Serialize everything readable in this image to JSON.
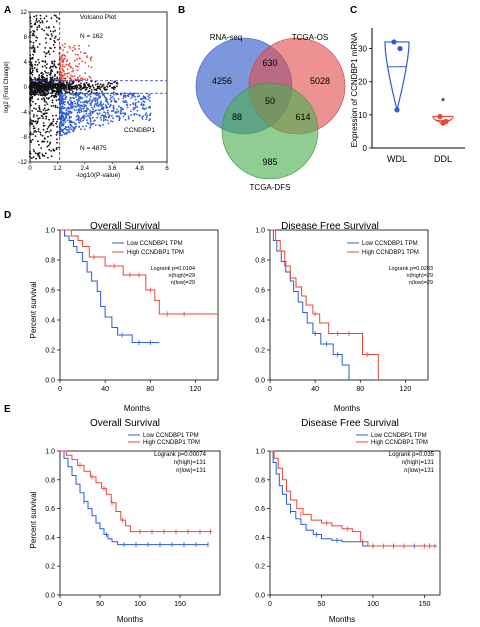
{
  "panel_labels": [
    "A",
    "B",
    "C",
    "D",
    "E"
  ],
  "colors": {
    "red": "#e8473a",
    "blue": "#2f5bd6",
    "black": "#111111",
    "dashed": "#2233cc",
    "venn_a": "#4a6fcf",
    "venn_b": "#e0504e",
    "venn_c": "#4caf50"
  },
  "chart_data": [
    {
      "panel": "A",
      "type": "scatter",
      "title": "Volcano Plot",
      "xlabel": "-log10(P-value)",
      "ylabel": "log2 (Fold Change)",
      "xlim": [
        0,
        6
      ],
      "ylim": [
        -12,
        12
      ],
      "xticks": [
        "0",
        "1.2",
        "2.4",
        "3.6",
        "4.8",
        "6"
      ],
      "yticks": [
        "12",
        "8",
        "4",
        "0",
        "-4",
        "-8",
        "-12"
      ],
      "thresholds": {
        "x": 1.3,
        "y_up": 1,
        "y_down": -1
      },
      "annotations": {
        "up_count": "N = 162",
        "down_count": "N = 4875",
        "gene": "CCNDBP1"
      },
      "series": [
        {
          "color": "red",
          "count": 162
        },
        {
          "color": "blue",
          "count": 4875
        },
        {
          "color": "black"
        }
      ]
    },
    {
      "panel": "B",
      "type": "venn",
      "sets": [
        "RNA-seq",
        "TCGA-OS",
        "TCGA-DFS"
      ],
      "regions": {
        "A": "4256",
        "B": "5028",
        "C": "985",
        "AB": "630",
        "AC": "88",
        "BC": "614",
        "ABC": "50"
      }
    },
    {
      "panel": "C",
      "type": "violin",
      "ylabel": "Expression of CCNDBP1 mRNA",
      "categories": [
        "WDL",
        "DDL"
      ],
      "ylim": [
        0,
        35
      ],
      "yticks": [
        "0",
        "10",
        "20",
        "30"
      ],
      "groups": [
        {
          "name": "WDL",
          "points": [
            32,
            30,
            11.5
          ],
          "color": "blue"
        },
        {
          "name": "DDL",
          "points": [
            9.5,
            8,
            7.5
          ],
          "color": "red"
        }
      ],
      "significance": "*"
    },
    {
      "panel": "D",
      "type": "line",
      "title": "Overall Survival",
      "xlabel": "Months",
      "ylabel": "Percent survival",
      "xlim": [
        0,
        140
      ],
      "ylim": [
        0,
        1
      ],
      "xticks": [
        "0",
        "40",
        "80",
        "120"
      ],
      "yticks": [
        "0.0",
        "0.2",
        "0.4",
        "0.6",
        "0.8",
        "1.0"
      ],
      "legend": [
        "Low CCNDBP1 TPM",
        "High CCNDBP1 TPM"
      ],
      "stats": [
        "Logrank p=0.0184",
        "n(high)=29",
        "n(low)=29"
      ],
      "series": [
        {
          "name": "Low CCNDBP1 TPM",
          "color": "blue",
          "steps": [
            [
              0,
              1.0
            ],
            [
              4,
              0.96
            ],
            [
              8,
              0.93
            ],
            [
              12,
              0.89
            ],
            [
              15,
              0.85
            ],
            [
              20,
              0.79
            ],
            [
              24,
              0.72
            ],
            [
              28,
              0.66
            ],
            [
              33,
              0.59
            ],
            [
              36,
              0.49
            ],
            [
              40,
              0.42
            ],
            [
              46,
              0.35
            ],
            [
              51,
              0.3
            ],
            [
              64,
              0.25
            ],
            [
              88,
              0.25
            ]
          ],
          "censor": [
            [
              55,
              0.3
            ],
            [
              70,
              0.25
            ],
            [
              80,
              0.25
            ]
          ]
        },
        {
          "name": "High CCNDBP1 TPM",
          "color": "red",
          "steps": [
            [
              0,
              1.0
            ],
            [
              10,
              0.96
            ],
            [
              16,
              0.93
            ],
            [
              20,
              0.89
            ],
            [
              26,
              0.82
            ],
            [
              40,
              0.76
            ],
            [
              56,
              0.7
            ],
            [
              76,
              0.6
            ],
            [
              84,
              0.53
            ],
            [
              88,
              0.44
            ],
            [
              140,
              0.44
            ]
          ],
          "censor": [
            [
              30,
              0.82
            ],
            [
              48,
              0.76
            ],
            [
              62,
              0.7
            ],
            [
              70,
              0.7
            ],
            [
              80,
              0.6
            ],
            [
              95,
              0.44
            ],
            [
              110,
              0.44
            ]
          ]
        }
      ]
    },
    {
      "panel": "D",
      "type": "line",
      "title": "Disease Free Survival",
      "xlabel": "Months",
      "ylabel": "",
      "xlim": [
        0,
        140
      ],
      "ylim": [
        0,
        1
      ],
      "xticks": [
        "0",
        "40",
        "80",
        "120"
      ],
      "yticks": [
        "0.0",
        "0.2",
        "0.4",
        "0.6",
        "0.8",
        "1.0"
      ],
      "legend": [
        "Low CCNDBP1 TPM",
        "High CCNDBP1 TPM"
      ],
      "stats": [
        "Logrank p=0.0283",
        "n(high)=29",
        "n(low)=29"
      ],
      "series": [
        {
          "name": "Low CCNDBP1 TPM",
          "color": "blue",
          "steps": [
            [
              0,
              1.0
            ],
            [
              3,
              0.93
            ],
            [
              6,
              0.86
            ],
            [
              10,
              0.79
            ],
            [
              14,
              0.72
            ],
            [
              18,
              0.66
            ],
            [
              21,
              0.59
            ],
            [
              25,
              0.52
            ],
            [
              29,
              0.45
            ],
            [
              33,
              0.38
            ],
            [
              38,
              0.31
            ],
            [
              45,
              0.24
            ],
            [
              56,
              0.17
            ],
            [
              64,
              0.1
            ],
            [
              70,
              0.0
            ]
          ],
          "censor": [
            [
              40,
              0.31
            ],
            [
              50,
              0.24
            ],
            [
              60,
              0.17
            ]
          ]
        },
        {
          "name": "High CCNDBP1 TPM",
          "color": "red",
          "steps": [
            [
              0,
              1.0
            ],
            [
              5,
              0.93
            ],
            [
              9,
              0.86
            ],
            [
              13,
              0.76
            ],
            [
              18,
              0.68
            ],
            [
              23,
              0.62
            ],
            [
              28,
              0.56
            ],
            [
              32,
              0.5
            ],
            [
              38,
              0.44
            ],
            [
              44,
              0.38
            ],
            [
              52,
              0.31
            ],
            [
              82,
              0.17
            ],
            [
              96,
              0.0
            ]
          ],
          "censor": [
            [
              40,
              0.44
            ],
            [
              60,
              0.31
            ],
            [
              70,
              0.31
            ],
            [
              86,
              0.17
            ]
          ]
        }
      ]
    },
    {
      "panel": "E",
      "type": "line",
      "title": "Overall Survival",
      "xlabel": "Months",
      "ylabel": "Percent survival",
      "xlim": [
        0,
        200
      ],
      "ylim": [
        0,
        1
      ],
      "xticks": [
        "0",
        "50",
        "100",
        "150"
      ],
      "yticks": [
        "0.0",
        "0.2",
        "0.4",
        "0.6",
        "0.8",
        "1.0"
      ],
      "legend": [
        "Low CCNDBP1 TPM",
        "High CCNDBP1 TPM"
      ],
      "stats": [
        "Logrank p=0.00074",
        "n(high)=131",
        "n(low)=131"
      ],
      "series": [
        {
          "name": "Low CCNDBP1 TPM",
          "color": "blue",
          "steps": [
            [
              0,
              1.0
            ],
            [
              5,
              0.95
            ],
            [
              10,
              0.89
            ],
            [
              15,
              0.83
            ],
            [
              20,
              0.77
            ],
            [
              25,
              0.71
            ],
            [
              30,
              0.65
            ],
            [
              35,
              0.6
            ],
            [
              40,
              0.55
            ],
            [
              45,
              0.5
            ],
            [
              50,
              0.46
            ],
            [
              55,
              0.42
            ],
            [
              60,
              0.39
            ],
            [
              65,
              0.37
            ],
            [
              72,
              0.35
            ],
            [
              185,
              0.35
            ]
          ],
          "censor": [
            [
              30,
              0.65
            ],
            [
              58,
              0.42
            ],
            [
              80,
              0.35
            ],
            [
              95,
              0.35
            ],
            [
              110,
              0.35
            ],
            [
              125,
              0.35
            ],
            [
              140,
              0.35
            ],
            [
              155,
              0.35
            ],
            [
              170,
              0.35
            ],
            [
              185,
              0.35
            ]
          ]
        },
        {
          "name": "High CCNDBP1 TPM",
          "color": "red",
          "steps": [
            [
              0,
              1.0
            ],
            [
              8,
              0.97
            ],
            [
              15,
              0.94
            ],
            [
              22,
              0.9
            ],
            [
              30,
              0.86
            ],
            [
              38,
              0.82
            ],
            [
              45,
              0.78
            ],
            [
              52,
              0.74
            ],
            [
              58,
              0.7
            ],
            [
              64,
              0.64
            ],
            [
              70,
              0.58
            ],
            [
              76,
              0.52
            ],
            [
              82,
              0.48
            ],
            [
              88,
              0.44
            ],
            [
              190,
              0.44
            ]
          ],
          "censor": [
            [
              25,
              0.9
            ],
            [
              40,
              0.82
            ],
            [
              55,
              0.74
            ],
            [
              65,
              0.64
            ],
            [
              78,
              0.52
            ],
            [
              100,
              0.44
            ],
            [
              115,
              0.44
            ],
            [
              130,
              0.44
            ],
            [
              145,
              0.44
            ],
            [
              160,
              0.44
            ],
            [
              175,
              0.44
            ],
            [
              188,
              0.44
            ]
          ]
        }
      ]
    },
    {
      "panel": "E",
      "type": "line",
      "title": "Disease Free Survival",
      "xlabel": "Months",
      "ylabel": "",
      "xlim": [
        0,
        165
      ],
      "ylim": [
        0,
        1
      ],
      "xticks": [
        "0",
        "50",
        "100",
        "150"
      ],
      "yticks": [
        "0.0",
        "0.2",
        "0.4",
        "0.6",
        "0.8",
        "1.0"
      ],
      "legend": [
        "Low CCNDBP1 TPM",
        "High CCNDBP1 TPM"
      ],
      "stats": [
        "Logrank p=0.035",
        "n(high)=131",
        "n(low)=131"
      ],
      "series": [
        {
          "name": "Low CCNDBP1 TPM",
          "color": "blue",
          "steps": [
            [
              0,
              1.0
            ],
            [
              3,
              0.92
            ],
            [
              6,
              0.84
            ],
            [
              9,
              0.76
            ],
            [
              12,
              0.7
            ],
            [
              16,
              0.63
            ],
            [
              20,
              0.58
            ],
            [
              25,
              0.53
            ],
            [
              30,
              0.49
            ],
            [
              35,
              0.45
            ],
            [
              42,
              0.42
            ],
            [
              50,
              0.39
            ],
            [
              60,
              0.38
            ],
            [
              70,
              0.37
            ],
            [
              90,
              0.34
            ],
            [
              162,
              0.34
            ]
          ],
          "censor": [
            [
              20,
              0.58
            ],
            [
              45,
              0.42
            ],
            [
              65,
              0.38
            ],
            [
              100,
              0.34
            ],
            [
              120,
              0.34
            ],
            [
              140,
              0.34
            ],
            [
              155,
              0.34
            ]
          ]
        },
        {
          "name": "High CCNDBP1 TPM",
          "color": "red",
          "steps": [
            [
              0,
              1.0
            ],
            [
              4,
              0.95
            ],
            [
              8,
              0.88
            ],
            [
              12,
              0.8
            ],
            [
              16,
              0.72
            ],
            [
              20,
              0.66
            ],
            [
              26,
              0.6
            ],
            [
              32,
              0.56
            ],
            [
              40,
              0.52
            ],
            [
              50,
              0.5
            ],
            [
              60,
              0.48
            ],
            [
              70,
              0.46
            ],
            [
              80,
              0.44
            ],
            [
              88,
              0.37
            ],
            [
              95,
              0.34
            ],
            [
              160,
              0.34
            ]
          ],
          "censor": [
            [
              30,
              0.56
            ],
            [
              55,
              0.5
            ],
            [
              75,
              0.46
            ],
            [
              90,
              0.37
            ],
            [
              110,
              0.34
            ],
            [
              130,
              0.34
            ],
            [
              150,
              0.34
            ],
            [
              160,
              0.34
            ]
          ]
        }
      ]
    }
  ]
}
